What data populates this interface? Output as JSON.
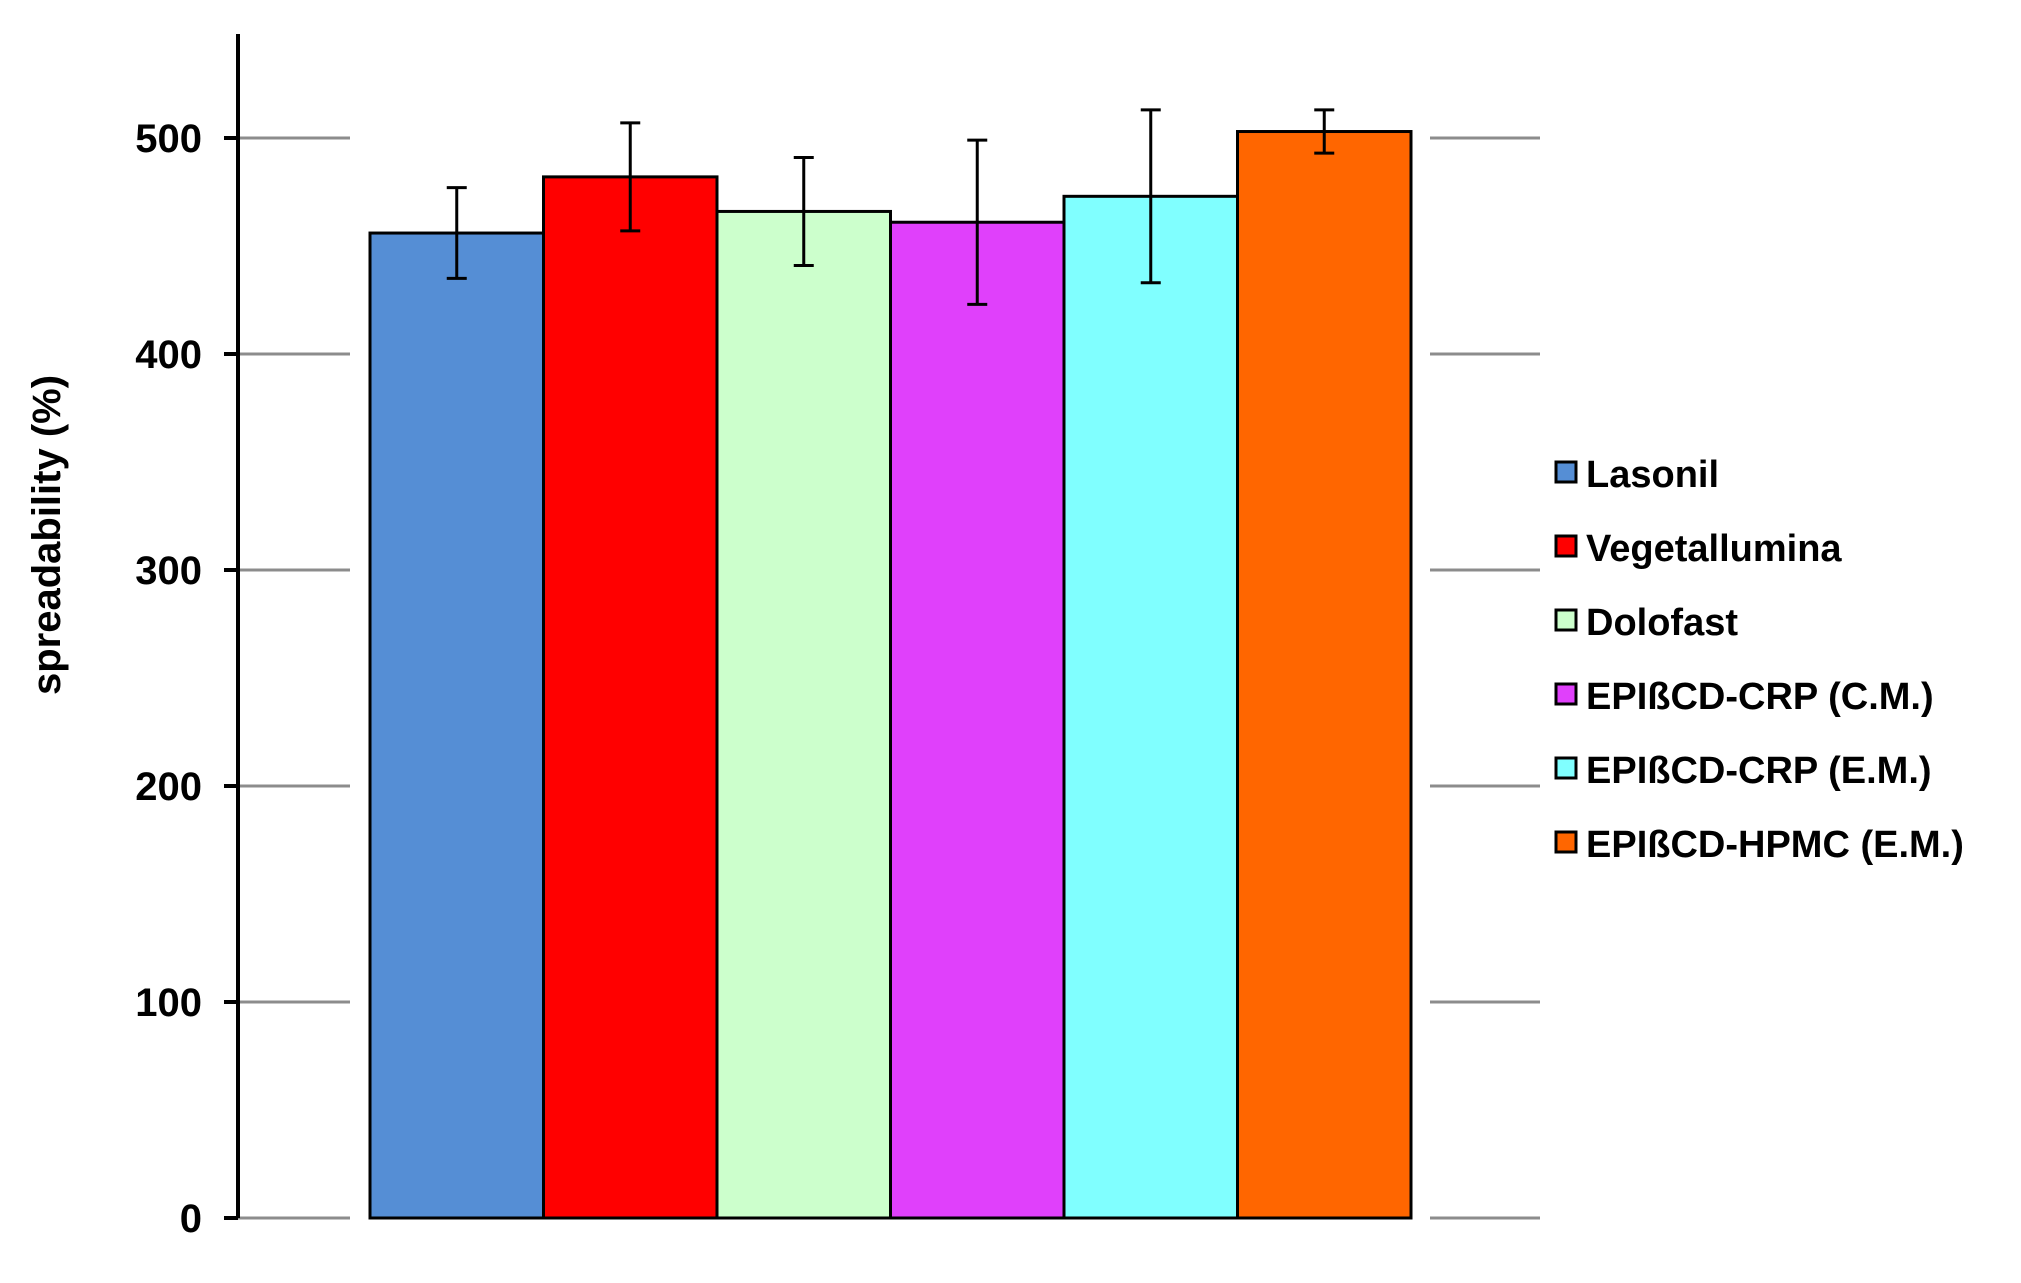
{
  "chart_data": {
    "type": "bar",
    "title": "",
    "xlabel": "",
    "ylabel": "spreadability (%)",
    "ylim": [
      0,
      550
    ],
    "yticks": [
      0,
      100,
      200,
      300,
      400,
      500
    ],
    "grid": true,
    "legend_position": "right",
    "series": [
      {
        "name": "Lasonil",
        "value": 456,
        "error": 21,
        "color": "#558ed5"
      },
      {
        "name": "Vegetallumina",
        "value": 482,
        "error": 25,
        "color": "#ff0000"
      },
      {
        "name": "Dolofast",
        "value": 466,
        "error": 25,
        "color": "#ccffcc"
      },
      {
        "name": "EPIßCD-CRP (C.M.)",
        "value": 461,
        "error": 38,
        "color": "#e040fb"
      },
      {
        "name": "EPIßCD-CRP (E.M.)",
        "value": 473,
        "error": 40,
        "color": "#80ffff"
      },
      {
        "name": "EPIßCD-HPMC (E.M.)",
        "value": 503,
        "error": 10,
        "color": "#ff6600"
      }
    ]
  }
}
